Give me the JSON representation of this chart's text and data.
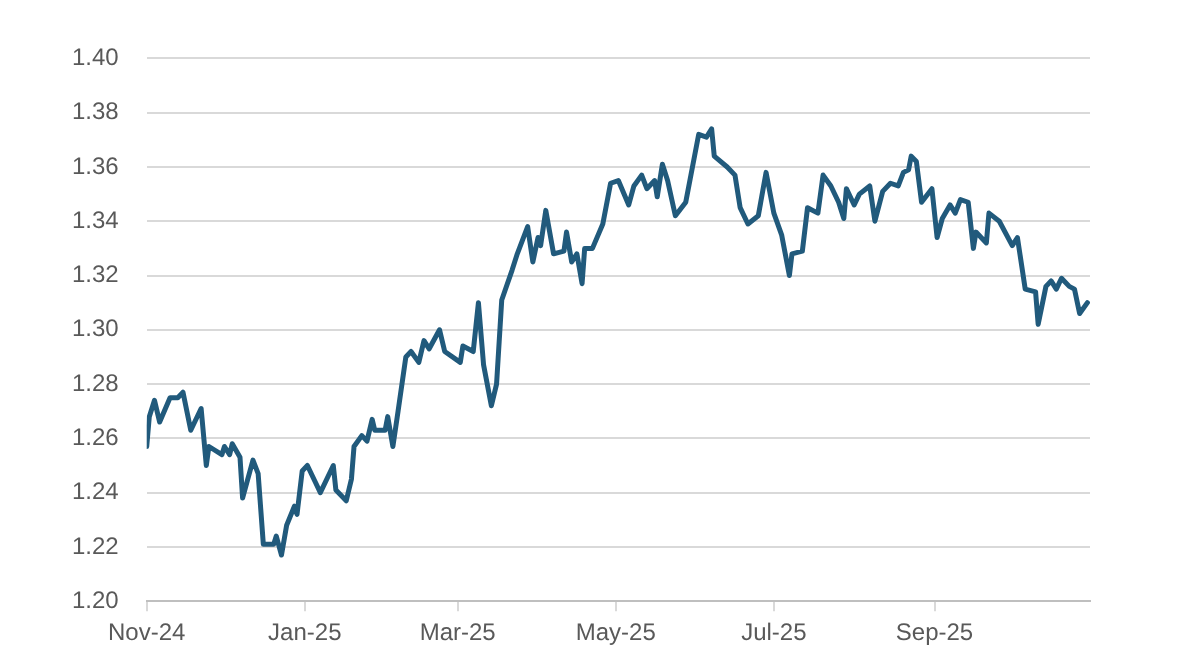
{
  "chart_data": {
    "type": "line",
    "x": [
      "2024-11-01",
      "2024-11-02",
      "2024-11-04",
      "2024-11-06",
      "2024-11-10",
      "2024-11-13",
      "2024-11-15",
      "2024-11-18",
      "2024-11-22",
      "2024-11-24",
      "2024-11-25",
      "2024-11-30",
      "2024-12-01",
      "2024-12-03",
      "2024-12-04",
      "2024-12-07",
      "2024-12-08",
      "2024-12-12",
      "2024-12-14",
      "2024-12-16",
      "2024-12-20",
      "2024-12-21",
      "2024-12-23",
      "2024-12-25",
      "2024-12-28",
      "2024-12-29",
      "2024-12-31",
      "2025-01-02",
      "2025-01-05",
      "2025-01-07",
      "2025-01-12",
      "2025-01-13",
      "2025-01-17",
      "2025-01-19",
      "2025-01-20",
      "2025-01-23",
      "2025-01-25",
      "2025-01-27",
      "2025-01-28",
      "2025-02-01",
      "2025-02-02",
      "2025-02-04",
      "2025-02-06",
      "2025-02-09",
      "2025-02-11",
      "2025-02-14",
      "2025-02-16",
      "2025-02-18",
      "2025-02-22",
      "2025-02-24",
      "2025-03-02",
      "2025-03-03",
      "2025-03-07",
      "2025-03-09",
      "2025-03-11",
      "2025-03-14",
      "2025-03-16",
      "2025-03-18",
      "2025-03-22",
      "2025-03-24",
      "2025-03-28",
      "2025-03-30",
      "2025-04-01",
      "2025-04-02",
      "2025-04-04",
      "2025-04-07",
      "2025-04-11",
      "2025-04-12",
      "2025-04-14",
      "2025-04-16",
      "2025-04-18",
      "2025-04-19",
      "2025-04-22",
      "2025-04-26",
      "2025-04-29",
      "2025-05-02",
      "2025-05-06",
      "2025-05-08",
      "2025-05-11",
      "2025-05-13",
      "2025-05-16",
      "2025-05-17",
      "2025-05-19",
      "2025-05-21",
      "2025-05-24",
      "2025-05-28",
      "2025-06-02",
      "2025-06-05",
      "2025-06-07",
      "2025-06-08",
      "2025-06-13",
      "2025-06-16",
      "2025-06-18",
      "2025-06-21",
      "2025-06-25",
      "2025-06-28",
      "2025-07-01",
      "2025-07-04",
      "2025-07-07",
      "2025-07-08",
      "2025-07-12",
      "2025-07-14",
      "2025-07-18",
      "2025-07-20",
      "2025-07-23",
      "2025-07-26",
      "2025-07-28",
      "2025-07-29",
      "2025-08-01",
      "2025-08-03",
      "2025-08-07",
      "2025-08-09",
      "2025-08-12",
      "2025-08-15",
      "2025-08-18",
      "2025-08-20",
      "2025-08-22",
      "2025-08-23",
      "2025-08-25",
      "2025-08-27",
      "2025-08-31",
      "2025-09-02",
      "2025-09-04",
      "2025-09-07",
      "2025-09-09",
      "2025-09-11",
      "2025-09-14",
      "2025-09-16",
      "2025-09-17",
      "2025-09-21",
      "2025-09-22",
      "2025-09-26",
      "2025-10-01",
      "2025-10-03",
      "2025-10-06",
      "2025-10-10",
      "2025-10-11",
      "2025-10-14",
      "2025-10-16",
      "2025-10-18",
      "2025-10-20",
      "2025-10-23",
      "2025-10-25",
      "2025-10-27",
      "2025-10-30"
    ],
    "series": [
      {
        "color": "#215a7c",
        "values": [
          1.257,
          1.268,
          1.274,
          1.266,
          1.275,
          1.275,
          1.277,
          1.263,
          1.271,
          1.25,
          1.257,
          1.254,
          1.257,
          1.254,
          1.258,
          1.253,
          1.238,
          1.252,
          1.247,
          1.221,
          1.221,
          1.224,
          1.217,
          1.228,
          1.235,
          1.232,
          1.248,
          1.25,
          1.244,
          1.24,
          1.25,
          1.241,
          1.237,
          1.245,
          1.257,
          1.261,
          1.259,
          1.267,
          1.263,
          1.263,
          1.268,
          1.257,
          1.27,
          1.29,
          1.292,
          1.288,
          1.296,
          1.293,
          1.3,
          1.292,
          1.288,
          1.294,
          1.292,
          1.31,
          1.287,
          1.272,
          1.28,
          1.311,
          1.322,
          1.328,
          1.338,
          1.325,
          1.334,
          1.331,
          1.344,
          1.328,
          1.329,
          1.336,
          1.325,
          1.328,
          1.317,
          1.33,
          1.33,
          1.339,
          1.354,
          1.355,
          1.346,
          1.353,
          1.357,
          1.352,
          1.355,
          1.349,
          1.361,
          1.355,
          1.342,
          1.347,
          1.372,
          1.371,
          1.374,
          1.364,
          1.36,
          1.357,
          1.345,
          1.339,
          1.342,
          1.358,
          1.343,
          1.335,
          1.32,
          1.328,
          1.329,
          1.345,
          1.343,
          1.357,
          1.353,
          1.347,
          1.341,
          1.352,
          1.346,
          1.35,
          1.353,
          1.34,
          1.351,
          1.354,
          1.353,
          1.358,
          1.359,
          1.364,
          1.362,
          1.347,
          1.352,
          1.334,
          1.341,
          1.346,
          1.343,
          1.348,
          1.347,
          1.33,
          1.336,
          1.332,
          1.343,
          1.34,
          1.331,
          1.334,
          1.315,
          1.314,
          1.302,
          1.316,
          1.318,
          1.315,
          1.319,
          1.316,
          1.315,
          1.306,
          1.31
        ]
      }
    ],
    "xlim": [
      "2024-11-01",
      "2025-10-31"
    ],
    "xticks": [
      {
        "value": "2024-11-01",
        "label": "Nov-24"
      },
      {
        "value": "2025-01-01",
        "label": "Jan-25"
      },
      {
        "value": "2025-03-01",
        "label": "Mar-25"
      },
      {
        "value": "2025-05-01",
        "label": "May-25"
      },
      {
        "value": "2025-07-01",
        "label": "Jul-25"
      },
      {
        "value": "2025-09-01",
        "label": "Sep-25"
      }
    ],
    "ylim": [
      1.2,
      1.4
    ],
    "yticks": [
      {
        "value": 1.2,
        "label": "1.20"
      },
      {
        "value": 1.22,
        "label": "1.22"
      },
      {
        "value": 1.24,
        "label": "1.24"
      },
      {
        "value": 1.26,
        "label": "1.26"
      },
      {
        "value": 1.28,
        "label": "1.28"
      },
      {
        "value": 1.3,
        "label": "1.30"
      },
      {
        "value": 1.32,
        "label": "1.32"
      },
      {
        "value": 1.34,
        "label": "1.34"
      },
      {
        "value": 1.36,
        "label": "1.36"
      },
      {
        "value": 1.38,
        "label": "1.38"
      },
      {
        "value": 1.4,
        "label": "1.40"
      }
    ],
    "grid": "y",
    "legend": false,
    "marker": "none",
    "line_style": "solid"
  }
}
